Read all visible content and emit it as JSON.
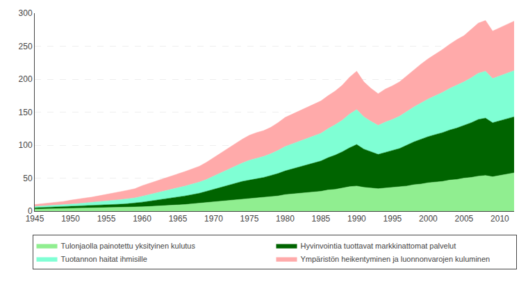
{
  "chart_data": {
    "type": "area",
    "stacked": true,
    "x": [
      1945,
      1946,
      1947,
      1948,
      1949,
      1950,
      1951,
      1952,
      1953,
      1954,
      1955,
      1956,
      1957,
      1958,
      1959,
      1960,
      1961,
      1962,
      1963,
      1964,
      1965,
      1966,
      1967,
      1968,
      1969,
      1970,
      1971,
      1972,
      1973,
      1974,
      1975,
      1976,
      1977,
      1978,
      1979,
      1980,
      1981,
      1982,
      1983,
      1984,
      1985,
      1986,
      1987,
      1988,
      1989,
      1990,
      1991,
      1992,
      1993,
      1994,
      1995,
      1996,
      1997,
      1998,
      1999,
      2000,
      2001,
      2002,
      2003,
      2004,
      2005,
      2006,
      2007,
      2008,
      2009,
      2010,
      2011,
      2012
    ],
    "series": [
      {
        "name": "Tulonjaolla painotettu yksityinen kulutus",
        "color": "#90ee90",
        "values": [
          3,
          3.2,
          3.4,
          3.6,
          3.8,
          4,
          4.2,
          4.4,
          4.6,
          4.8,
          5,
          5.2,
          5.5,
          5.7,
          6,
          6.5,
          7,
          7.5,
          8,
          8.5,
          9,
          10,
          11,
          12,
          13,
          14,
          15,
          16,
          17,
          18,
          19,
          20,
          21,
          22,
          23,
          25,
          26,
          27,
          28,
          29,
          30,
          32,
          33,
          35,
          37,
          38,
          36,
          35,
          34,
          35,
          36,
          37,
          38,
          40,
          41,
          43,
          44,
          45,
          47,
          48,
          50,
          51,
          53,
          54,
          52,
          54,
          56,
          58
        ]
      },
      {
        "name": "Hyvinvointia tuottavat markkinattomat palvelut",
        "color": "#006400",
        "values": [
          2,
          2.2,
          2.4,
          2.6,
          2.8,
          3,
          3.2,
          3.4,
          3.6,
          3.8,
          4,
          4.5,
          5,
          5.5,
          6,
          7,
          8,
          9,
          10,
          11,
          12,
          13,
          14,
          15,
          17,
          19,
          21,
          23,
          25,
          27,
          28,
          29,
          30,
          32,
          34,
          36,
          38,
          40,
          42,
          44,
          46,
          49,
          52,
          55,
          59,
          63,
          58,
          55,
          52,
          54,
          56,
          58,
          62,
          65,
          68,
          70,
          72,
          74,
          76,
          78,
          80,
          83,
          86,
          87,
          82,
          83,
          84,
          85
        ]
      },
      {
        "name": "Tuotannon haitat ihmisille",
        "color": "#7fffd4",
        "values": [
          2,
          2.2,
          2.5,
          2.8,
          3,
          3.5,
          4,
          4.5,
          5,
          5.5,
          6,
          6.5,
          7,
          7.5,
          8,
          9,
          10,
          11,
          12,
          13,
          14,
          15,
          16,
          17,
          18,
          20,
          22,
          24,
          26,
          28,
          30,
          31,
          32,
          33,
          35,
          37,
          38,
          39,
          40,
          41,
          42,
          44,
          46,
          48,
          51,
          53,
          49,
          46,
          44,
          46,
          47,
          49,
          51,
          53,
          55,
          57,
          59,
          61,
          63,
          65,
          66,
          68,
          70,
          71,
          67,
          68,
          69,
          70
        ]
      },
      {
        "name": "Ympäristön heikentyminen ja luonnonvarojen kuluminen",
        "color": "#ffaaaa",
        "values": [
          3,
          3.5,
          4,
          4.5,
          5,
          6,
          7,
          7.5,
          8,
          9,
          10,
          11,
          12,
          13,
          14,
          16,
          17,
          18,
          19,
          20,
          21,
          22,
          23,
          24,
          26,
          28,
          30,
          32,
          34,
          36,
          38,
          39,
          39,
          40,
          42,
          44,
          45,
          46,
          47,
          48,
          49,
          50,
          51,
          53,
          56,
          58,
          53,
          50,
          48,
          50,
          51,
          52,
          54,
          57,
          59,
          61,
          63,
          65,
          67,
          69,
          70,
          73,
          76,
          77,
          72,
          73,
          74,
          75
        ]
      }
    ],
    "xlim": [
      1945,
      2012
    ],
    "xticks": [
      1945,
      1950,
      1955,
      1960,
      1965,
      1970,
      1975,
      1980,
      1985,
      1990,
      1995,
      2000,
      2005,
      2010
    ],
    "ylim": [
      0,
      300
    ],
    "yticks": [
      0,
      50,
      100,
      150,
      200,
      250,
      300
    ],
    "grid": "y",
    "legend": "bottom"
  }
}
